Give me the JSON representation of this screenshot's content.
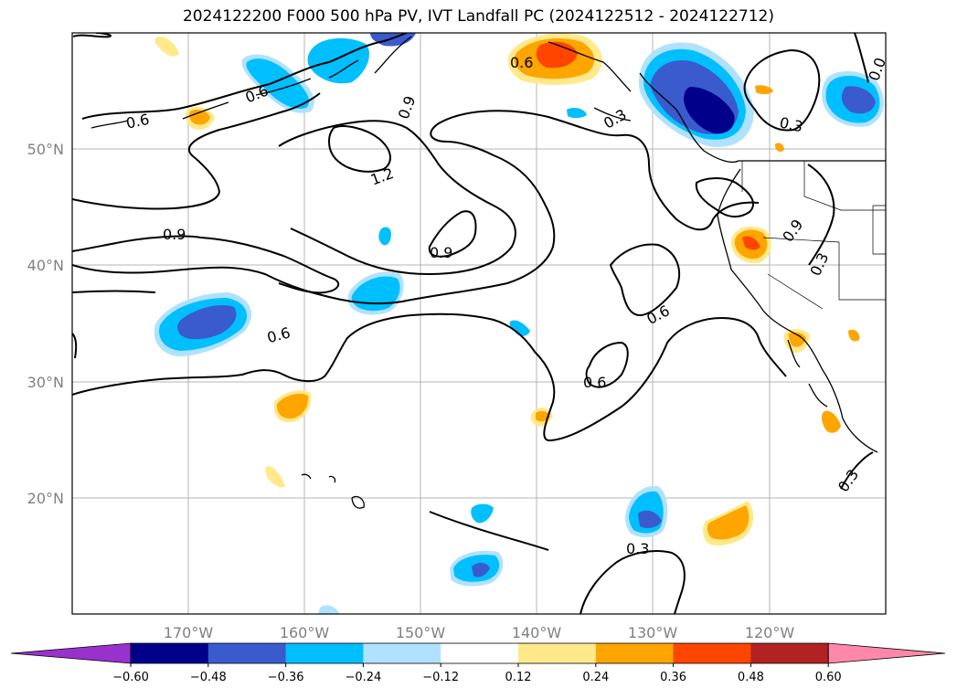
{
  "title": "2024122200 F000 500 hPa PV, IVT Landfall PC (2024122512 - 2024122712)",
  "lon_ticks": [
    "170°W",
    "160°W",
    "150°W",
    "140°W",
    "130°W",
    "120°W"
  ],
  "lat_ticks": [
    "50°N",
    "40°N",
    "30°N",
    "20°N"
  ],
  "contour_labels": [
    "0.6",
    "0.6",
    "0.9",
    "1.2",
    "0.9",
    "0.9",
    "0.6",
    "0.6",
    "0.6",
    "0.3",
    "0.3",
    "0.9",
    "0.3",
    "0.6",
    "0.3",
    "0.3",
    "0.0"
  ],
  "colorbar": {
    "colors": [
      "#9932cc",
      "#00008b",
      "#3a5bcd",
      "#00bfff",
      "#b0e2ff",
      "#ffffff",
      "#ffe98a",
      "#ffa500",
      "#ff4500",
      "#b22222",
      "#ff88aa"
    ],
    "tick_labels": [
      "−0.60",
      "−0.48",
      "−0.36",
      "−0.24",
      "−0.12",
      "0.12",
      "0.24",
      "0.36",
      "0.48",
      "0.60"
    ]
  }
}
